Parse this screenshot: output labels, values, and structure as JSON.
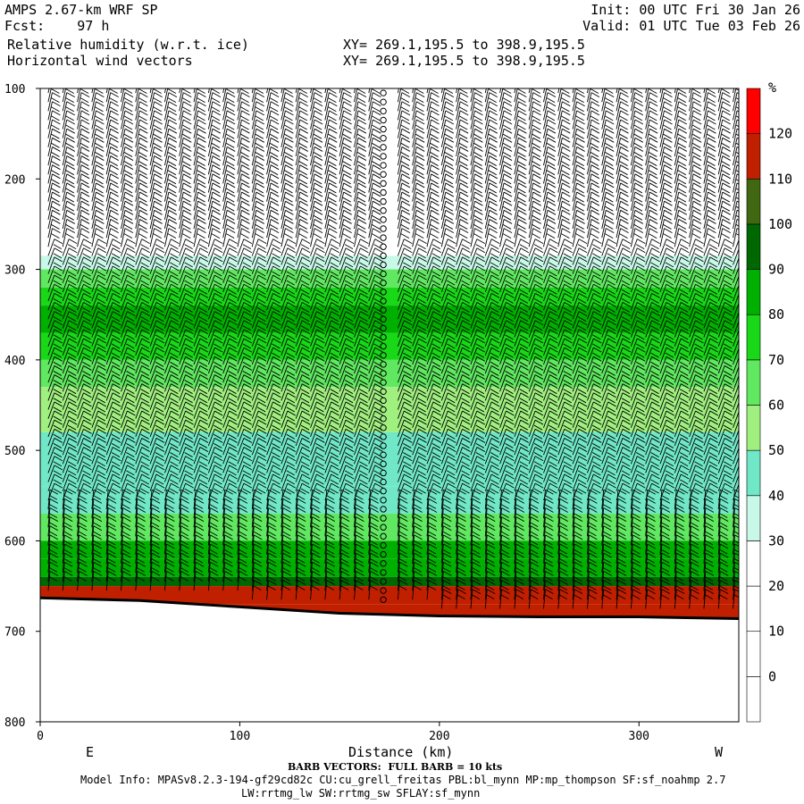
{
  "header": {
    "title_left": "AMPS 2.67-km WRF SP",
    "forecast": "Fcst:    97 h",
    "field_1": "Relative humidity (w.r.t. ice)",
    "field_2": "Horizontal wind vectors",
    "init": "Init: 00 UTC Fri 30 Jan 26",
    "valid": "Valid: 01 UTC Tue 03 Feb 26",
    "xy_1": "XY= 269.1,195.5 to 398.9,195.5",
    "xy_2": "XY= 269.1,195.5 to 398.9,195.5"
  },
  "footer": {
    "barb_note": "BARB VECTORS:  FULL BARB = 10 kts",
    "model_info_1": "Model Info: MPASv8.2.3-194-gf29cd82c CU:cu_grell_freitas PBL:bl_mynn MP:mp_thompson SF:sf_noahmp 2.7",
    "model_info_2": "LW:rrtmg_lw SW:rrtmg_sw SFLAY:sf_mynn"
  },
  "chart_data": {
    "type": "heatmap",
    "title": "Relative humidity (w.r.t. ice)",
    "xlabel": "Distance (km)",
    "ylabel": "",
    "xlim": [
      0,
      350
    ],
    "ylim": [
      800,
      100
    ],
    "x_ticks": [
      0,
      100,
      200,
      300
    ],
    "y_ticks": [
      100,
      200,
      300,
      400,
      500,
      600,
      700,
      800
    ],
    "x_end_labels": [
      "E",
      "W"
    ],
    "colorbar": {
      "unit": "%",
      "levels": [
        0,
        10,
        20,
        30,
        40,
        50,
        60,
        70,
        80,
        90,
        100,
        110,
        120
      ],
      "colors": [
        "#ffffff",
        "#ffffff",
        "#ffffff",
        "#ffffff",
        "#c8f8e8",
        "#70e8c8",
        "#a0f080",
        "#60e860",
        "#18d818",
        "#00b000",
        "#006800",
        "#406810",
        "#c02000",
        "#ff0000"
      ]
    },
    "humidity_profile": [
      {
        "p": 100,
        "rh": 5
      },
      {
        "p": 270,
        "rh": 10
      },
      {
        "p": 285,
        "rh": 35
      },
      {
        "p": 300,
        "rh": 65
      },
      {
        "p": 320,
        "rh": 75
      },
      {
        "p": 340,
        "rh": 85
      },
      {
        "p": 370,
        "rh": 75
      },
      {
        "p": 400,
        "rh": 65
      },
      {
        "p": 430,
        "rh": 50
      },
      {
        "p": 480,
        "rh": 45
      },
      {
        "p": 540,
        "rh": 40
      },
      {
        "p": 570,
        "rh": 65
      },
      {
        "p": 600,
        "rh": 80
      },
      {
        "p": 620,
        "rh": 85
      },
      {
        "p": 640,
        "rh": 95
      },
      {
        "p": 650,
        "rh": 112
      },
      {
        "p": 670,
        "rh": 115
      }
    ],
    "terrain_surface_hpa": [
      {
        "km": 0,
        "p": 663
      },
      {
        "km": 50,
        "p": 666
      },
      {
        "km": 100,
        "p": 673
      },
      {
        "km": 150,
        "p": 680
      },
      {
        "km": 200,
        "p": 683
      },
      {
        "km": 250,
        "p": 684
      },
      {
        "km": 300,
        "p": 684
      },
      {
        "km": 350,
        "p": 686
      }
    ],
    "calm_column_km": 174
  }
}
